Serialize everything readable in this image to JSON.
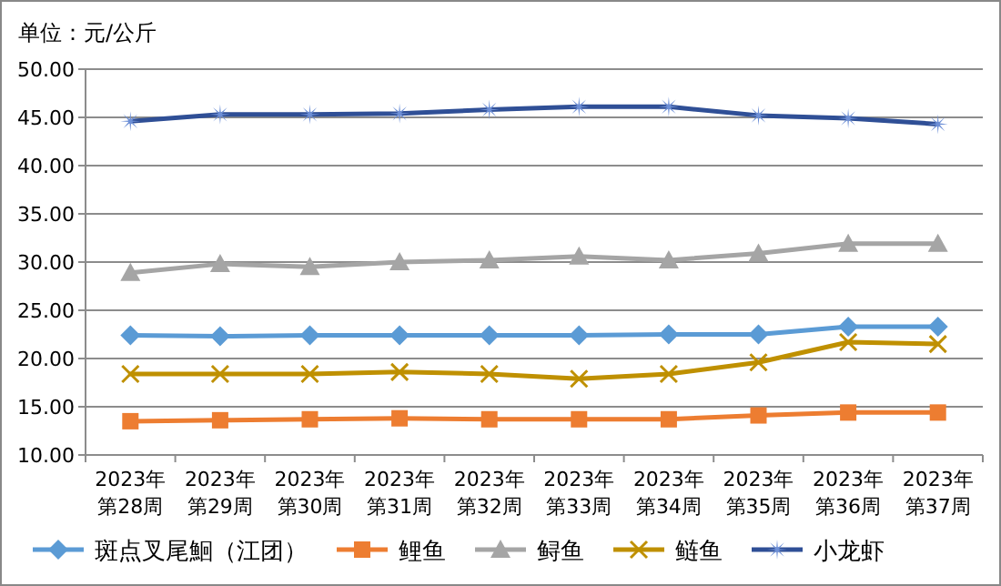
{
  "chart_data": {
    "type": "line",
    "ylabel": "单位：元/公斤",
    "categories": [
      "2023年第28周",
      "2023年第29周",
      "2023年第30周",
      "2023年第31周",
      "2023年第32周",
      "2023年第33周",
      "2023年第34周",
      "2023年第35周",
      "2023年第36周",
      "2023年第37周"
    ],
    "series": [
      {
        "name": "斑点叉尾鮰（江团）",
        "color": "#5b9bd5",
        "marker": "diamond",
        "values": [
          22.4,
          22.3,
          22.4,
          22.4,
          22.4,
          22.4,
          22.5,
          22.5,
          23.3,
          23.3
        ]
      },
      {
        "name": "鲤鱼",
        "color": "#ed7d31",
        "marker": "square",
        "values": [
          13.5,
          13.6,
          13.7,
          13.8,
          13.7,
          13.7,
          13.7,
          14.1,
          14.4,
          14.4
        ]
      },
      {
        "name": "鲟鱼",
        "color": "#a5a5a5",
        "marker": "triangle",
        "values": [
          28.9,
          29.8,
          29.5,
          30.0,
          30.2,
          30.6,
          30.2,
          30.9,
          31.9,
          31.9
        ]
      },
      {
        "name": "鲢鱼",
        "color": "#bf9000",
        "marker": "cross",
        "values": [
          18.4,
          18.4,
          18.4,
          18.6,
          18.4,
          17.9,
          18.4,
          19.6,
          21.7,
          21.5
        ]
      },
      {
        "name": "小龙虾",
        "color": "#2f4f96",
        "marker": "star",
        "values": [
          44.6,
          45.3,
          45.3,
          45.4,
          45.8,
          46.1,
          46.1,
          45.2,
          44.9,
          44.3
        ]
      }
    ],
    "ylim": [
      10,
      50
    ],
    "yticks": [
      {
        "value": 10,
        "label": "10.00"
      },
      {
        "value": 15,
        "label": "15.00"
      },
      {
        "value": 20,
        "label": "20.00"
      },
      {
        "value": 25,
        "label": "25.00"
      },
      {
        "value": 30,
        "label": "30.00"
      },
      {
        "value": 35,
        "label": "35.00"
      },
      {
        "value": 40,
        "label": "40.00"
      },
      {
        "value": 45,
        "label": "45.00"
      },
      {
        "value": 50,
        "label": "50.00"
      }
    ],
    "grid": "y",
    "legend": "bottom",
    "line_style": "solid"
  }
}
